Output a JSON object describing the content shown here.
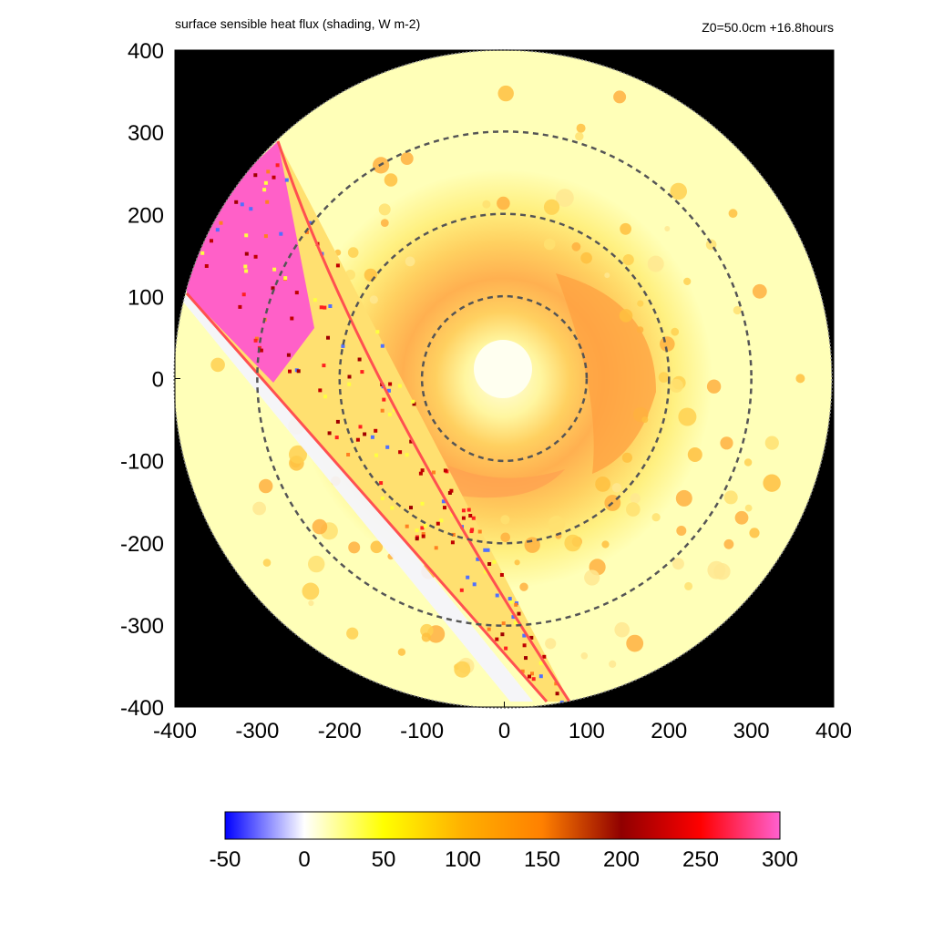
{
  "chart_data": {
    "type": "heatmap",
    "title": "surface sensible heat flux (shading, W m-2)",
    "subtitle": "Z0=50.0cm  +16.8hours",
    "xlim": [
      -400,
      400
    ],
    "ylim": [
      -400,
      400
    ],
    "x_ticks": [
      "-400",
      "-300",
      "-200",
      "-100",
      "0",
      "100",
      "200",
      "300",
      "400"
    ],
    "y_ticks": [
      "400",
      "300",
      "200",
      "100",
      "0",
      "-100",
      "-200",
      "-300",
      "-400"
    ],
    "domain_radius": 400,
    "range_rings": [
      100,
      200,
      300
    ],
    "colorbar": {
      "range": [
        -50,
        300
      ],
      "ticks": [
        "-50",
        "0",
        "50",
        "100",
        "150",
        "200",
        "250",
        "300"
      ],
      "stops": [
        {
          "value": -50,
          "color": "#0000ff"
        },
        {
          "value": 0,
          "color": "#ffffff"
        },
        {
          "value": 50,
          "color": "#ffff00"
        },
        {
          "value": 100,
          "color": "#ffb000"
        },
        {
          "value": 150,
          "color": "#ff8000"
        },
        {
          "value": 200,
          "color": "#900000"
        },
        {
          "value": 250,
          "color": "#ff0000"
        },
        {
          "value": 300,
          "color": "#ff60d0"
        }
      ]
    },
    "background_color": "#000000",
    "features": [
      {
        "name": "eye",
        "x": 0,
        "y": 0,
        "radius": 40,
        "value": 15
      },
      {
        "name": "inner core ring",
        "x": 0,
        "y": 0,
        "radius": 90,
        "value": 75
      },
      {
        "name": "orange band east",
        "x": 100,
        "y": 20,
        "value": 120
      },
      {
        "name": "orange band south",
        "x": -40,
        "y": -115,
        "value": 110
      },
      {
        "name": "outer field",
        "value": 25
      }
    ]
  }
}
